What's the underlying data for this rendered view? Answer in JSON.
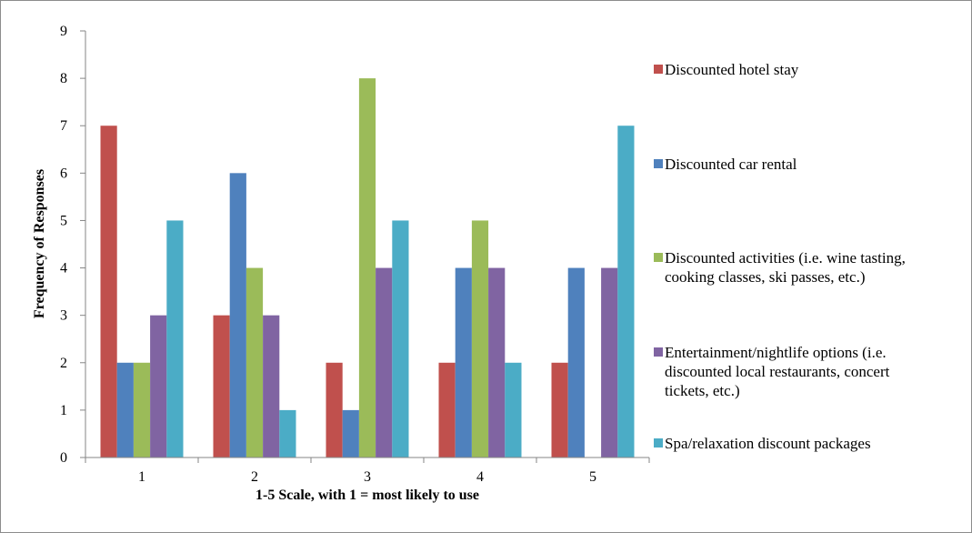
{
  "chart_data": {
    "type": "bar",
    "categories": [
      "1",
      "2",
      "3",
      "4",
      "5"
    ],
    "series": [
      {
        "name": "Discounted hotel stay",
        "color": "#c0504d",
        "values": [
          7,
          3,
          2,
          2,
          2
        ]
      },
      {
        "name": "Discounted car rental",
        "color": "#4f81bd",
        "values": [
          2,
          6,
          1,
          4,
          4
        ]
      },
      {
        "name": "Discounted activities (i.e. wine tasting, cooking classes, ski passes, etc.)",
        "color": "#9bbb59",
        "values": [
          2,
          4,
          8,
          5,
          0
        ]
      },
      {
        "name": "Entertainment/nightlife options (i.e. discounted local restaurants, concert tickets, etc.)",
        "color": "#8064a2",
        "values": [
          3,
          3,
          4,
          4,
          4
        ]
      },
      {
        "name": "Spa/relaxation discount packages",
        "color": "#4bacc6",
        "values": [
          5,
          1,
          5,
          2,
          7
        ]
      }
    ],
    "legend_lines": [
      [
        "Discounted hotel stay"
      ],
      [
        "Discounted car rental"
      ],
      [
        "Discounted activities (i.e. wine tasting,",
        "cooking classes, ski passes, etc.)"
      ],
      [
        "Entertainment/nightlife options (i.e.",
        "discounted local restaurants, concert",
        "tickets, etc.)"
      ],
      [
        "Spa/relaxation discount packages"
      ]
    ],
    "xlabel": "1-5 Scale, with 1 = most likely to use",
    "ylabel": "Frequency of Responses",
    "ylim": [
      0,
      9
    ],
    "yticks": [
      "0",
      "1",
      "2",
      "3",
      "4",
      "5",
      "6",
      "7",
      "8",
      "9"
    ],
    "grid": false,
    "legend_position": "right"
  }
}
